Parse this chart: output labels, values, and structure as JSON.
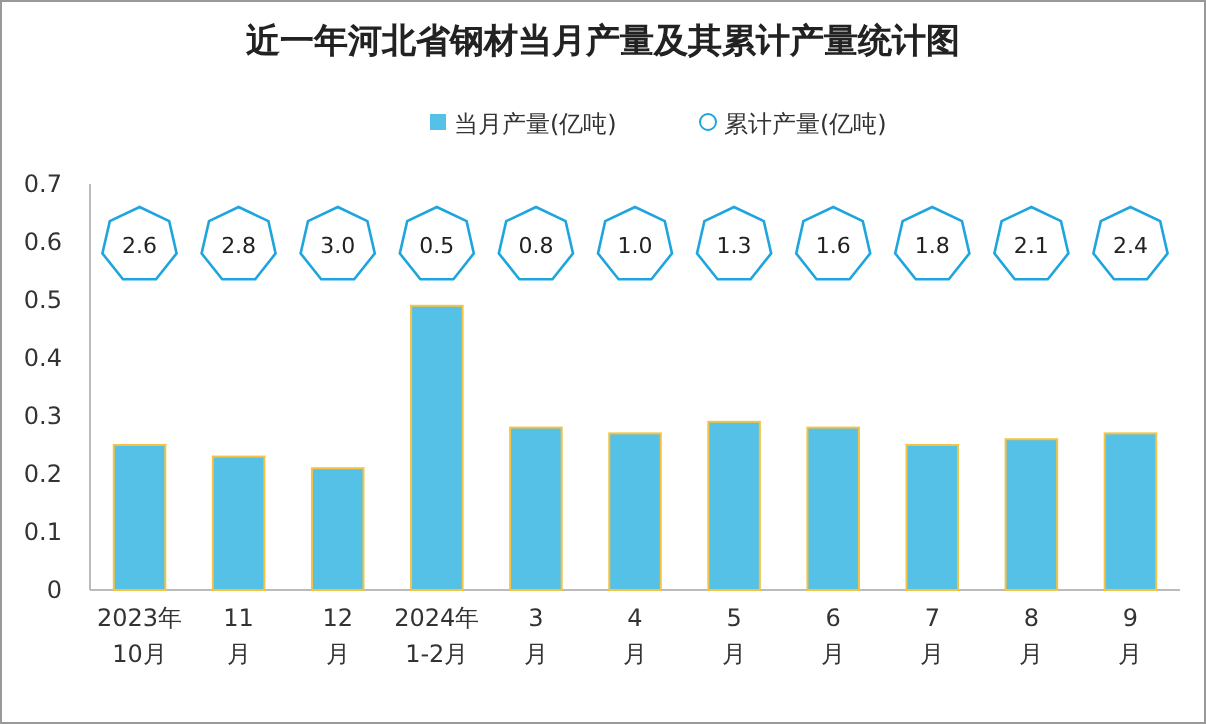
{
  "chart_data": {
    "type": "bar",
    "title": "近一年河北省钢材当月产量及其累计产量统计图",
    "categories": [
      "2023年\n10月",
      "11\n月",
      "12\n月",
      "2024年\n1-2月",
      "3\n月",
      "4\n月",
      "5\n月",
      "6\n月",
      "7\n月",
      "8\n月",
      "9\n月"
    ],
    "series": [
      {
        "name": "当月产量(亿吨)",
        "color": "#56c1e6",
        "values": [
          0.25,
          0.23,
          0.21,
          0.49,
          0.28,
          0.27,
          0.29,
          0.28,
          0.25,
          0.26,
          0.27
        ]
      },
      {
        "name": "累计产量(亿吨)",
        "type": "scatter",
        "color": "#1ea5de",
        "values": [
          null,
          null,
          null,
          null,
          null,
          null,
          null,
          null,
          null,
          null,
          null
        ],
        "value_labels": [
          "2.6",
          "2.8",
          "3.0",
          "0.5",
          "0.8",
          "1.0",
          "1.3",
          "1.6",
          "1.8",
          "2.1",
          "2.4"
        ]
      }
    ],
    "ylim": [
      0,
      0.7
    ],
    "yticks": [
      0,
      0.1,
      0.2,
      0.3,
      0.4,
      0.5,
      0.6,
      0.7
    ],
    "legend": "top",
    "grid": false
  }
}
